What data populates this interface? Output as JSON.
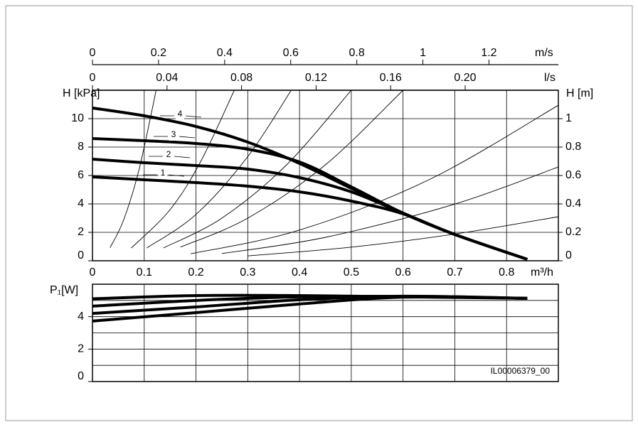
{
  "chart_data": [
    {
      "type": "line",
      "y_label": "H [kPa]",
      "y2_label": "H [m]",
      "x_label": "m³/h",
      "x2_label": "m/s",
      "x3_label": "l/s",
      "grid": true,
      "color": "#000000",
      "xlim": [
        0,
        0.9
      ],
      "xticks": [
        0,
        0.1,
        0.2,
        0.3,
        0.4,
        0.5,
        0.6,
        0.7,
        0.8
      ],
      "ylim": [
        0,
        12
      ],
      "yticks": [
        0,
        2,
        4,
        6,
        8,
        10
      ],
      "y2lim": [
        0,
        1.2
      ],
      "y2ticks": [
        0,
        0.2,
        0.4,
        0.6,
        0.8,
        1
      ],
      "x2lim": [
        0,
        1.41
      ],
      "x2ticks": [
        0,
        0.2,
        0.4,
        0.6,
        0.8,
        1,
        1.2
      ],
      "x3lim": [
        0,
        0.25
      ],
      "x3ticks": [
        0,
        0.04,
        0.08,
        0.12,
        0.16,
        {
          "value": 0.2,
          "label": "0.20"
        }
      ],
      "x": [
        0,
        0.1,
        0.2,
        0.3,
        0.4,
        0.5,
        0.6,
        0.7,
        0.84
      ],
      "series": [
        {
          "name": "1",
          "values": [
            5.9,
            5.7,
            5.5,
            5.25,
            4.85,
            4.2,
            3.3,
            1.85,
            0.1
          ]
        },
        {
          "name": "2",
          "values": [
            7.15,
            6.9,
            6.7,
            6.45,
            5.85,
            4.85,
            3.35,
            1.85,
            0.1
          ]
        },
        {
          "name": "3",
          "values": [
            8.6,
            8.45,
            8.25,
            7.85,
            6.95,
            5.2,
            3.35,
            1.85,
            0.1
          ]
        },
        {
          "name": "4",
          "values": [
            10.75,
            10.2,
            9.45,
            8.35,
            6.85,
            5.1,
            3.35,
            1.85,
            0.1
          ]
        }
      ],
      "system_curves": [
        {
          "x": [
            0.034,
            0.06,
            0.09,
            0.123
          ],
          "values": [
            0.92,
            2.85,
            6.42,
            12.0
          ]
        },
        {
          "x": [
            0.075,
            0.15,
            0.21,
            0.274
          ],
          "values": [
            0.9,
            3.6,
            7.05,
            12.0
          ]
        },
        {
          "x": [
            0.105,
            0.2,
            0.3,
            0.384
          ],
          "values": [
            0.9,
            3.26,
            7.33,
            12.0
          ]
        },
        {
          "x": [
            0.137,
            0.25,
            0.375,
            0.5
          ],
          "values": [
            0.9,
            3.0,
            6.75,
            12.0
          ]
        },
        {
          "x": [
            0.17,
            0.3,
            0.45,
            0.6
          ],
          "values": [
            0.96,
            3.0,
            6.75,
            12.0
          ]
        },
        {
          "x": [
            0.19,
            0.4,
            0.65,
            0.9
          ],
          "values": [
            0.49,
            2.16,
            5.7,
            10.94
          ]
        },
        {
          "x": [
            0.25,
            0.45,
            0.7,
            0.9
          ],
          "values": [
            0.51,
            1.65,
            3.99,
            6.6
          ]
        },
        {
          "x": [
            0.3,
            0.5,
            0.7,
            0.9
          ],
          "values": [
            0.34,
            0.96,
            1.88,
            3.1
          ]
        }
      ]
    },
    {
      "type": "line",
      "y_label": "P₁[W]",
      "grid": true,
      "color": "#000000",
      "annotation": "IL00006379_00",
      "xlim": [
        0,
        0.9
      ],
      "xticks": [
        0,
        0.1,
        0.2,
        0.3,
        0.4,
        0.5,
        0.6,
        0.7,
        0.8
      ],
      "ylim": [
        0,
        6
      ],
      "yticks": [
        0,
        2,
        4
      ],
      "minor_yticks": [
        1,
        3,
        5
      ],
      "x": [
        0,
        0.2,
        0.4,
        0.6,
        0.84
      ],
      "series": [
        {
          "name": "1",
          "values": [
            3.73,
            4.25,
            4.78,
            5.2,
            5.13
          ]
        },
        {
          "name": "2",
          "values": [
            4.2,
            4.6,
            5.04,
            5.26,
            5.13
          ]
        },
        {
          "name": "3",
          "values": [
            4.65,
            5.0,
            5.22,
            5.25,
            5.13
          ]
        },
        {
          "name": "4",
          "values": [
            5.1,
            5.3,
            5.3,
            5.22,
            5.13
          ]
        }
      ]
    }
  ]
}
